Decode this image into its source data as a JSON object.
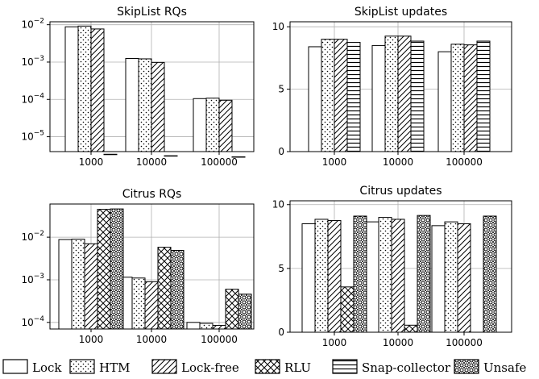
{
  "legend": [
    {
      "name": "Lock",
      "pattern": "none"
    },
    {
      "name": "HTM",
      "pattern": "dots"
    },
    {
      "name": "Lock-free",
      "pattern": "diag"
    },
    {
      "name": "RLU",
      "pattern": "cross"
    },
    {
      "name": "Snap-collector",
      "pattern": "horiz"
    },
    {
      "name": "Unsafe",
      "pattern": "rings"
    }
  ],
  "chart_data": [
    {
      "type": "bar",
      "title": "SkipList RQs",
      "scale": "log",
      "categories": [
        "1000",
        "10000",
        "100000"
      ],
      "ylim": [
        4e-06,
        0.012
      ],
      "yticks": [
        0.01,
        0.001,
        0.0001,
        1e-05
      ],
      "ytick_labels": [
        {
          "base": "10",
          "exp": "−2"
        },
        {
          "base": "10",
          "exp": "−3"
        },
        {
          "base": "10",
          "exp": "−4"
        },
        {
          "base": "10",
          "exp": "−5"
        }
      ],
      "grid": true,
      "series": [
        {
          "name": "Lock",
          "values": [
            0.0088,
            0.00125,
            0.000105
          ]
        },
        {
          "name": "HTM",
          "values": [
            0.0092,
            0.00122,
            0.000108
          ]
        },
        {
          "name": "Lock-free",
          "values": [
            0.0077,
            0.00098,
            9.5e-05
          ]
        },
        {
          "name": "Snap-collector",
          "values": [
            3.4e-06,
            3.1e-06,
            2.9e-06
          ]
        }
      ]
    },
    {
      "type": "bar",
      "title": "SkipList updates",
      "scale": "linear",
      "categories": [
        "1000",
        "10000",
        "100000"
      ],
      "ylim": [
        0,
        10.4
      ],
      "yticks": [
        0,
        5,
        10
      ],
      "ytick_labels": [
        "0",
        "5",
        "10"
      ],
      "grid": true,
      "series": [
        {
          "name": "Lock",
          "values": [
            8.4,
            8.5,
            8.0
          ]
        },
        {
          "name": "HTM",
          "values": [
            9.0,
            9.25,
            8.6
          ]
        },
        {
          "name": "Lock-free",
          "values": [
            9.0,
            9.25,
            8.55
          ]
        },
        {
          "name": "Snap-collector",
          "values": [
            8.75,
            8.85,
            8.85
          ]
        }
      ]
    },
    {
      "type": "bar",
      "title": "Citrus RQs",
      "scale": "log",
      "categories": [
        "1000",
        "10000",
        "100000"
      ],
      "ylim": [
        7e-05,
        0.06
      ],
      "yticks": [
        0.01,
        0.001,
        0.0001
      ],
      "ytick_labels": [
        {
          "base": "10",
          "exp": "−2"
        },
        {
          "base": "10",
          "exp": "−3"
        },
        {
          "base": "10",
          "exp": "−4"
        }
      ],
      "grid": true,
      "series": [
        {
          "name": "Lock",
          "values": [
            0.0088,
            0.00115,
            0.0001
          ]
        },
        {
          "name": "HTM",
          "values": [
            0.009,
            0.0011,
            9.5e-05
          ]
        },
        {
          "name": "Lock-free",
          "values": [
            0.007,
            0.0009,
            8.5e-05
          ]
        },
        {
          "name": "RLU",
          "values": [
            0.045,
            0.0058,
            0.0006
          ]
        },
        {
          "name": "Unsafe",
          "values": [
            0.046,
            0.0049,
            0.00046
          ]
        }
      ]
    },
    {
      "type": "bar",
      "title": "Citrus updates",
      "scale": "linear",
      "categories": [
        "1000",
        "10000",
        "100000"
      ],
      "ylim": [
        0,
        10.3
      ],
      "yticks": [
        0,
        5,
        10
      ],
      "ytick_labels": [
        "0",
        "5",
        "10"
      ],
      "grid": true,
      "series": [
        {
          "name": "Lock",
          "values": [
            8.5,
            8.65,
            8.35
          ]
        },
        {
          "name": "HTM",
          "values": [
            8.85,
            9.0,
            8.65
          ]
        },
        {
          "name": "Lock-free",
          "values": [
            8.75,
            8.85,
            8.5
          ]
        },
        {
          "name": "RLU",
          "values": [
            3.55,
            0.55,
            null
          ]
        },
        {
          "name": "Unsafe",
          "values": [
            9.1,
            9.15,
            9.1
          ]
        }
      ]
    }
  ]
}
